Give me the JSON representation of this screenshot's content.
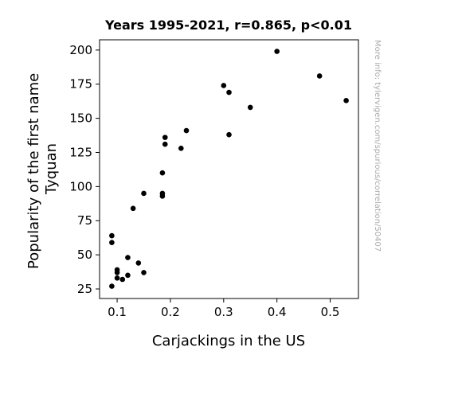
{
  "chart_data": {
    "type": "scatter",
    "title": "Years 1995-2021, r=0.865, p<0.01",
    "xlabel": "Carjackings in the US",
    "ylabel": [
      "Popularity of the first name",
      "Tyquan"
    ],
    "watermark": "More info: tylervigen.com/spurious/correlation/50407",
    "xlim": [
      0.067,
      0.553
    ],
    "ylim": [
      18,
      207.5
    ],
    "xticks": [
      0.1,
      0.2,
      0.3,
      0.4,
      0.5
    ],
    "xtick_labels": [
      "0.1",
      "0.2",
      "0.3",
      "0.4",
      "0.5"
    ],
    "yticks": [
      25,
      50,
      75,
      100,
      125,
      150,
      175,
      200
    ],
    "ytick_labels": [
      "25",
      "50",
      "75",
      "100",
      "125",
      "150",
      "175",
      "200"
    ],
    "grid": false,
    "marker_color": "#000000",
    "points": [
      {
        "x": 0.09,
        "y": 64
      },
      {
        "x": 0.09,
        "y": 59
      },
      {
        "x": 0.09,
        "y": 27
      },
      {
        "x": 0.1,
        "y": 39
      },
      {
        "x": 0.1,
        "y": 37
      },
      {
        "x": 0.1,
        "y": 33
      },
      {
        "x": 0.11,
        "y": 32
      },
      {
        "x": 0.12,
        "y": 48
      },
      {
        "x": 0.12,
        "y": 35
      },
      {
        "x": 0.13,
        "y": 84
      },
      {
        "x": 0.14,
        "y": 44
      },
      {
        "x": 0.15,
        "y": 95
      },
      {
        "x": 0.15,
        "y": 37
      },
      {
        "x": 0.185,
        "y": 110
      },
      {
        "x": 0.185,
        "y": 95
      },
      {
        "x": 0.185,
        "y": 93
      },
      {
        "x": 0.19,
        "y": 136
      },
      {
        "x": 0.19,
        "y": 131
      },
      {
        "x": 0.22,
        "y": 128
      },
      {
        "x": 0.23,
        "y": 141
      },
      {
        "x": 0.3,
        "y": 174
      },
      {
        "x": 0.31,
        "y": 169
      },
      {
        "x": 0.31,
        "y": 138
      },
      {
        "x": 0.35,
        "y": 158
      },
      {
        "x": 0.4,
        "y": 199
      },
      {
        "x": 0.48,
        "y": 181
      },
      {
        "x": 0.53,
        "y": 163
      }
    ]
  }
}
